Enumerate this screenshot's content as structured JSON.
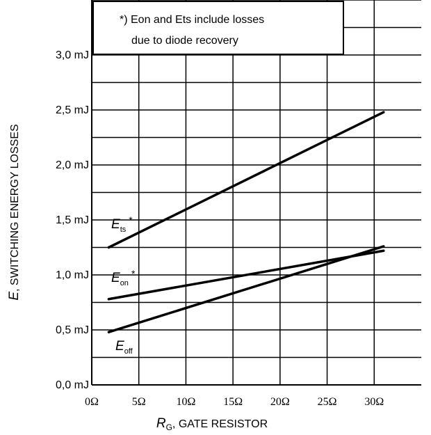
{
  "chart_data": {
    "type": "line",
    "x_ticks": [
      "0Ω",
      "5Ω",
      "10Ω",
      "15Ω",
      "20Ω",
      "25Ω",
      "30Ω"
    ],
    "y_ticks": [
      "0,0 mJ",
      "0,5 mJ",
      "1,0 mJ",
      "1,5 mJ",
      "2,0 mJ",
      "2,5 mJ",
      "3,0 mJ"
    ],
    "xlim": [
      0,
      35
    ],
    "ylim": [
      0,
      3.5
    ],
    "grid": true,
    "xlabel": {
      "main": "R",
      "sub": "G",
      "rest": ", GATE RESISTOR"
    },
    "ylabel": {
      "main": "E",
      "rest": ", SWITCHING ENERGY LOSSES"
    },
    "annotation": [
      "*) Eon and Ets include losses",
      "due to diode recovery"
    ],
    "series": [
      {
        "name": "Ets*",
        "label_main": "E",
        "label_sub": "ts",
        "label_star": "*",
        "x": [
          1.8,
          31
        ],
        "y": [
          1.25,
          2.48
        ]
      },
      {
        "name": "Eon*",
        "label_main": "E",
        "label_sub": "on",
        "label_star": "*",
        "x": [
          1.8,
          31
        ],
        "y": [
          0.78,
          1.22
        ]
      },
      {
        "name": "Eoff",
        "label_main": "E",
        "label_sub": "off",
        "label_star": "",
        "x": [
          1.8,
          31
        ],
        "y": [
          0.48,
          1.26
        ]
      }
    ]
  }
}
